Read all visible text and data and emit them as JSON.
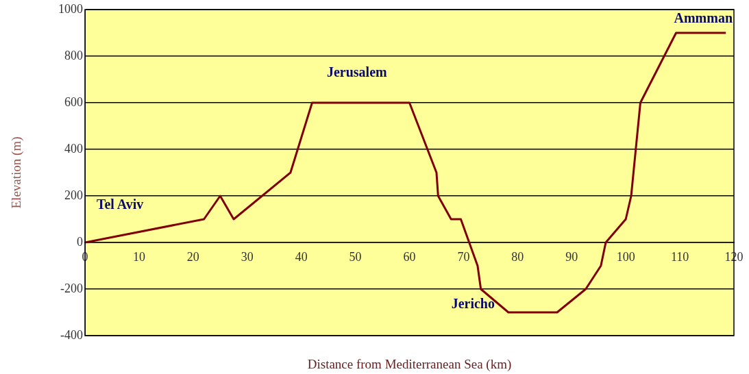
{
  "chart_data": {
    "type": "line",
    "xlabel": "Distance from Mediterranean Sea (km)",
    "ylabel": "Elevation (m)",
    "x": [
      0,
      22,
      25,
      27.5,
      38,
      42,
      60,
      65,
      65.3,
      67.7,
      69.5,
      72.6,
      73.2,
      78.3,
      87.3,
      92.6,
      95.4,
      96.3,
      100,
      101,
      102.7,
      109.3,
      118.5
    ],
    "series": [
      {
        "color": "#800000",
        "values": [
          0,
          100,
          200,
          100,
          300,
          600,
          600,
          300,
          200,
          100,
          100,
          -100,
          -200,
          -300,
          -300,
          -200,
          -100,
          0,
          100,
          200,
          600,
          900,
          900
        ]
      }
    ],
    "xlim": [
      0,
      120
    ],
    "xticks": [
      0,
      10,
      20,
      30,
      40,
      50,
      60,
      70,
      80,
      90,
      100,
      110,
      120
    ],
    "ylim": [
      -400,
      1000
    ],
    "yticks": [
      -400,
      -200,
      0,
      200,
      400,
      600,
      800,
      1000
    ],
    "grid": "y",
    "legend": false,
    "marker": "none",
    "line_style": "solid",
    "annotations": [
      "Tel Aviv",
      "Jerusalem",
      "Jericho",
      "Ammman"
    ]
  }
}
